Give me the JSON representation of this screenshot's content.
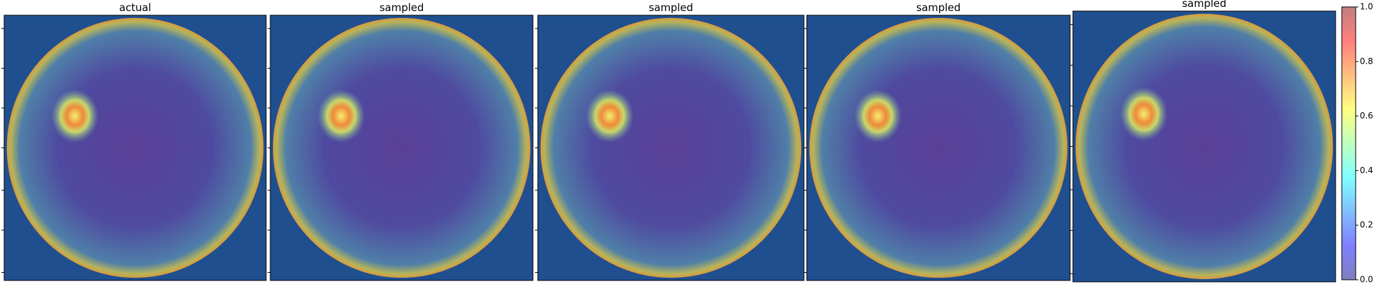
{
  "chart_data": {
    "type": "heatmap",
    "panels": [
      {
        "title": "actual"
      },
      {
        "title": "sampled"
      },
      {
        "title": "sampled"
      },
      {
        "title": "sampled"
      },
      {
        "title": "sampled"
      }
    ],
    "colormap": "jet",
    "colorbar": {
      "lim": [
        0,
        1
      ],
      "ticks": [
        {
          "value": 0,
          "label": "0.0"
        },
        {
          "value": 0.2,
          "label": "0.2"
        },
        {
          "value": 0.4,
          "label": "0.4"
        },
        {
          "value": 0.6,
          "label": "0.6"
        },
        {
          "value": 0.8,
          "label": "0.8"
        },
        {
          "value": 1,
          "label": "1.0"
        }
      ]
    }
  }
}
